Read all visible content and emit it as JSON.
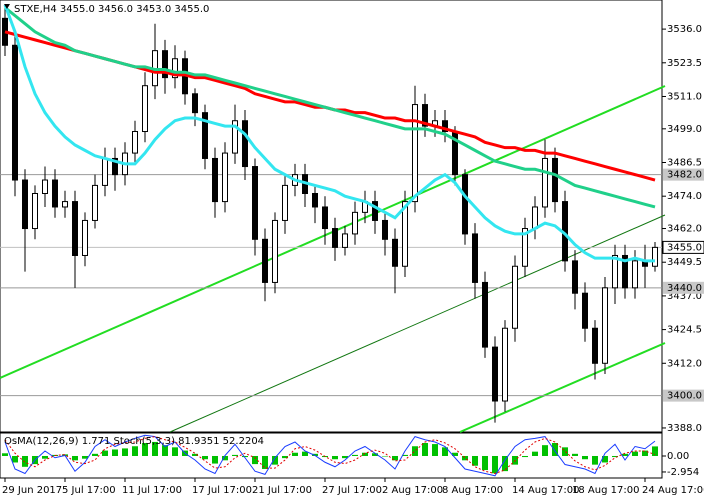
{
  "chart_data": {
    "type": "candlestick",
    "title": "STXE,H4 3455.0 3456.0 3453.0 3455.0",
    "open": [
      3540,
      3530,
      3480,
      3462,
      3475,
      3480,
      3470,
      3472,
      3452,
      3465,
      3478,
      3488,
      3482,
      3490,
      3498,
      3515,
      3528,
      3518,
      3525,
      3512,
      3505,
      3488,
      3472,
      3490,
      3502,
      3485,
      3458,
      3442,
      3465,
      3478,
      3482,
      3475,
      3470,
      3462,
      3455,
      3460,
      3468,
      3472,
      3465,
      3458,
      3448,
      3472,
      3508,
      3500,
      3502,
      3498,
      3482,
      3460,
      3442,
      3418,
      3398,
      3425,
      3448,
      3462,
      3470,
      3488,
      3472,
      3450,
      3438,
      3425,
      3412,
      3440,
      3452,
      3440,
      3450,
      3448
    ],
    "high": [
      3545,
      3535,
      3484,
      3478,
      3485,
      3484,
      3476,
      3476,
      3468,
      3482,
      3492,
      3492,
      3494,
      3502,
      3520,
      3538,
      3532,
      3530,
      3528,
      3514,
      3508,
      3492,
      3494,
      3508,
      3506,
      3488,
      3462,
      3468,
      3482,
      3486,
      3486,
      3478,
      3474,
      3466,
      3463,
      3472,
      3476,
      3476,
      3468,
      3462,
      3476,
      3515,
      3512,
      3506,
      3506,
      3500,
      3484,
      3464,
      3446,
      3422,
      3428,
      3452,
      3466,
      3474,
      3495,
      3492,
      3476,
      3454,
      3442,
      3428,
      3444,
      3456,
      3456,
      3454,
      3456,
      3457
    ],
    "low": [
      3526,
      3474,
      3446,
      3458,
      3470,
      3466,
      3466,
      3440,
      3448,
      3462,
      3474,
      3476,
      3478,
      3486,
      3494,
      3510,
      3512,
      3514,
      3508,
      3500,
      3484,
      3466,
      3468,
      3486,
      3480,
      3452,
      3435,
      3438,
      3460,
      3474,
      3470,
      3464,
      3456,
      3450,
      3452,
      3456,
      3464,
      3460,
      3452,
      3438,
      3444,
      3468,
      3496,
      3496,
      3494,
      3478,
      3456,
      3436,
      3414,
      3390,
      3394,
      3420,
      3444,
      3458,
      3466,
      3468,
      3446,
      3432,
      3420,
      3406,
      3408,
      3434,
      3436,
      3436,
      3440,
      3446
    ],
    "close": [
      3530,
      3480,
      3462,
      3475,
      3480,
      3470,
      3472,
      3452,
      3465,
      3478,
      3488,
      3482,
      3490,
      3498,
      3515,
      3528,
      3518,
      3525,
      3512,
      3505,
      3488,
      3472,
      3490,
      3502,
      3485,
      3458,
      3442,
      3465,
      3478,
      3482,
      3475,
      3470,
      3462,
      3455,
      3460,
      3468,
      3472,
      3465,
      3458,
      3448,
      3472,
      3508,
      3500,
      3502,
      3498,
      3482,
      3460,
      3442,
      3418,
      3398,
      3425,
      3448,
      3462,
      3470,
      3488,
      3472,
      3450,
      3438,
      3425,
      3412,
      3440,
      3452,
      3440,
      3450,
      3448,
      3455
    ],
    "categories": [
      "29 Jun 2017",
      null,
      null,
      null,
      null,
      null,
      "5 Jul 17:00",
      null,
      null,
      null,
      null,
      null,
      "11 Jul 17:00",
      null,
      null,
      null,
      null,
      null,
      null,
      "17 Jul 17:00",
      null,
      null,
      null,
      null,
      null,
      "21 Jul 17:00",
      null,
      null,
      null,
      null,
      null,
      null,
      "27 Jul 17:00",
      null,
      null,
      null,
      null,
      null,
      "2 Aug 17:00",
      null,
      null,
      null,
      null,
      null,
      "8 Aug 17:00",
      null,
      null,
      null,
      null,
      null,
      null,
      "14 Aug 17:00",
      null,
      null,
      null,
      null,
      null,
      "18 Aug 17:00",
      null,
      null,
      null,
      null,
      null,
      null,
      "24 Aug 17:00",
      null
    ],
    "moving_averages": [
      {
        "color": "#ff0000",
        "values": [
          3535,
          3534,
          3533,
          3532,
          3531,
          3530,
          3529,
          3528,
          3527,
          3526,
          3525,
          3524,
          3523,
          3522,
          3521,
          3520,
          3520,
          3519,
          3519,
          3518,
          3518,
          3517,
          3516,
          3515,
          3514,
          3512,
          3511,
          3510,
          3509,
          3509,
          3508,
          3507,
          3507,
          3506,
          3506,
          3505,
          3505,
          3504,
          3503,
          3503,
          3502,
          3502,
          3501,
          3500,
          3499,
          3498,
          3497,
          3496,
          3494,
          3493,
          3492,
          3492,
          3491,
          3491,
          3490,
          3490,
          3489,
          3488,
          3487,
          3486,
          3485,
          3484,
          3483,
          3482,
          3481,
          3480
        ]
      },
      {
        "color": "#20d08a",
        "values": [
          3544,
          3541,
          3538,
          3535,
          3533,
          3531,
          3530,
          3528,
          3527,
          3526,
          3525,
          3524,
          3523,
          3522,
          3522,
          3521,
          3521,
          3520,
          3520,
          3519,
          3519,
          3518,
          3517,
          3516,
          3515,
          3514,
          3513,
          3512,
          3511,
          3510,
          3509,
          3508,
          3507,
          3506,
          3505,
          3504,
          3503,
          3502,
          3501,
          3500,
          3499,
          3499,
          3499,
          3498,
          3497,
          3495,
          3493,
          3491,
          3489,
          3487,
          3486,
          3485,
          3484,
          3484,
          3483,
          3482,
          3480,
          3478,
          3477,
          3476,
          3475,
          3474,
          3473,
          3472,
          3471,
          3470
        ]
      },
      {
        "color": "#33e6f0",
        "values": [
          3545,
          3535,
          3522,
          3512,
          3505,
          3500,
          3496,
          3493,
          3491,
          3489,
          3488,
          3487,
          3486,
          3486,
          3490,
          3495,
          3499,
          3502,
          3503,
          3503,
          3502,
          3501,
          3500,
          3500,
          3497,
          3492,
          3488,
          3484,
          3482,
          3480,
          3479,
          3478,
          3477,
          3476,
          3474,
          3473,
          3472,
          3470,
          3468,
          3466,
          3470,
          3474,
          3477,
          3480,
          3482,
          3479,
          3474,
          3470,
          3466,
          3463,
          3461,
          3460,
          3460,
          3462,
          3464,
          3463,
          3460,
          3456,
          3453,
          3451,
          3451,
          3451,
          3450,
          3451,
          3450,
          3450
        ]
      }
    ],
    "ylim": [
      3386.5,
      3546.8
    ],
    "yticks": [
      {
        "value": 3536,
        "label": "3536.0"
      },
      {
        "value": 3523.5,
        "label": "3523.5"
      },
      {
        "value": 3511,
        "label": "3511.0"
      },
      {
        "value": 3499,
        "label": "3499.0"
      },
      {
        "value": 3486.5,
        "label": "3486.5"
      },
      {
        "value": 3474,
        "label": "3474.0"
      },
      {
        "value": 3462,
        "label": "3462.0"
      },
      {
        "value": 3449.5,
        "label": "3449.5"
      },
      {
        "value": 3437,
        "label": "3437.0"
      },
      {
        "value": 3424.5,
        "label": "3424.5"
      },
      {
        "value": 3412,
        "label": "3412.0"
      },
      {
        "value": 3388,
        "label": "3388.0"
      }
    ],
    "levels": [
      {
        "value": 3482,
        "label": "3482.0"
      },
      {
        "value": 3440,
        "label": "3440.0"
      },
      {
        "value": 3400,
        "label": "3400.0"
      }
    ],
    "last_price": {
      "value": 3455,
      "label": "3455.0"
    },
    "indicator_title": "OsMA(12,26,9) 1.771 Stoch(5,3,3) 81.9351 52.2204",
    "osma": [
      0.5,
      -1.2,
      -2.0,
      -1.5,
      -0.5,
      0.2,
      0.3,
      -0.8,
      -0.5,
      0.4,
      1.0,
      1.2,
      1.4,
      1.8,
      2.4,
      2.6,
      2.0,
      1.6,
      1.0,
      0.4,
      -0.6,
      -1.4,
      -0.8,
      0.2,
      -0.2,
      -1.5,
      -2.4,
      -1.6,
      -0.4,
      0.6,
      0.8,
      0.4,
      -0.2,
      -0.6,
      -0.4,
      0.2,
      0.6,
      0.5,
      0.0,
      -0.8,
      0.2,
      1.8,
      2.4,
      2.2,
      1.6,
      0.6,
      -0.8,
      -1.8,
      -2.6,
      -3.2,
      -2.8,
      -1.6,
      -0.2,
      0.8,
      2.0,
      2.4,
      1.6,
      0.4,
      -0.6,
      -1.6,
      -1.2,
      -0.2,
      0.4,
      0.8,
      1.0,
      1.771
    ],
    "osma_color": "#00c000",
    "y2lim": [
      -4.07,
      4.25
    ],
    "y2ticks": [
      {
        "value": 0,
        "label": "0.00"
      },
      {
        "value": -2.954,
        "label": "-2.954"
      }
    ],
    "stoch_main": [
      80,
      20,
      10,
      40,
      60,
      45,
      50,
      15,
      35,
      70,
      85,
      70,
      80,
      88,
      95,
      92,
      70,
      80,
      55,
      40,
      20,
      10,
      50,
      75,
      45,
      15,
      8,
      45,
      70,
      80,
      60,
      50,
      35,
      25,
      40,
      60,
      70,
      55,
      40,
      20,
      60,
      92,
      85,
      80,
      70,
      45,
      20,
      15,
      10,
      5,
      40,
      70,
      85,
      88,
      92,
      60,
      30,
      25,
      20,
      10,
      55,
      75,
      40,
      70,
      65,
      81.9351
    ],
    "stoch_signal": [
      85,
      55,
      35,
      25,
      40,
      50,
      52,
      35,
      32,
      40,
      65,
      75,
      78,
      80,
      88,
      92,
      85,
      80,
      68,
      55,
      38,
      22,
      25,
      45,
      55,
      45,
      22,
      22,
      40,
      65,
      70,
      62,
      48,
      35,
      32,
      40,
      55,
      62,
      55,
      38,
      40,
      60,
      80,
      85,
      78,
      65,
      45,
      25,
      15,
      10,
      18,
      38,
      62,
      80,
      88,
      80,
      60,
      38,
      25,
      18,
      28,
      45,
      55,
      60,
      60,
      52.2204
    ],
    "stoch_lim": [
      0,
      100
    ]
  }
}
